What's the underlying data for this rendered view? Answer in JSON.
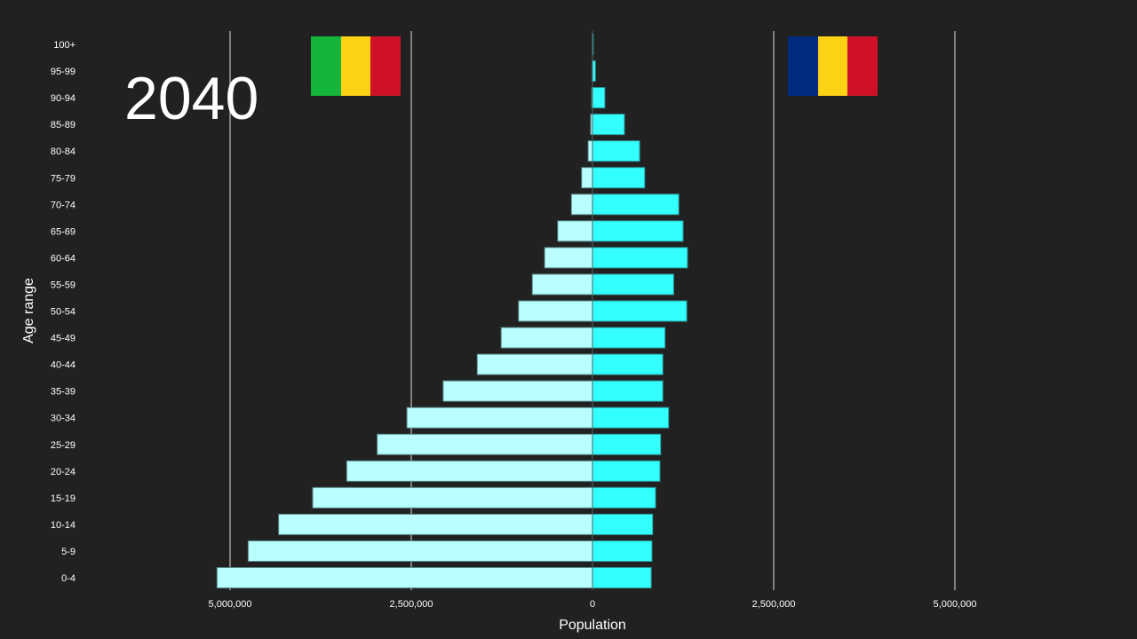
{
  "chart_data": {
    "type": "bar",
    "orientation": "horizontal-population-pyramid",
    "year_label": "2040",
    "xlabel": "Population",
    "ylabel": "Age range",
    "xlim": [
      -5000000,
      5000000
    ],
    "xticks": [
      -5000000,
      -2500000,
      0,
      2500000,
      5000000
    ],
    "xtick_labels": [
      "5,000,000",
      "2,500,000",
      "0",
      "2,500,000",
      "5,000,000"
    ],
    "grid": true,
    "categories": [
      "100+",
      "95-99",
      "90-94",
      "85-89",
      "80-84",
      "75-79",
      "70-74",
      "65-69",
      "60-64",
      "55-59",
      "50-54",
      "45-49",
      "40-44",
      "35-39",
      "30-34",
      "25-29",
      "20-24",
      "15-19",
      "10-14",
      "5-9",
      "0-4"
    ],
    "series": [
      {
        "side": "left",
        "flag": "Mali",
        "color": "#b9ffff",
        "values": [
          1000,
          3000,
          10000,
          25000,
          60000,
          150000,
          290000,
          480000,
          660000,
          830000,
          1020000,
          1260000,
          1590000,
          2060000,
          2560000,
          2970000,
          3390000,
          3860000,
          4330000,
          4750000,
          5180000
        ]
      },
      {
        "side": "right",
        "flag": "Romania",
        "color": "#33ffff",
        "values": [
          10000,
          40000,
          170000,
          440000,
          650000,
          720000,
          1190000,
          1250000,
          1310000,
          1120000,
          1300000,
          1000000,
          970000,
          970000,
          1050000,
          940000,
          930000,
          870000,
          830000,
          820000,
          810000
        ]
      }
    ],
    "flags": {
      "left": {
        "colors": [
          "#14b53a",
          "#fcd116",
          "#ce1126"
        ]
      },
      "right": {
        "colors": [
          "#002b7f",
          "#fcd116",
          "#ce1126"
        ]
      }
    }
  }
}
